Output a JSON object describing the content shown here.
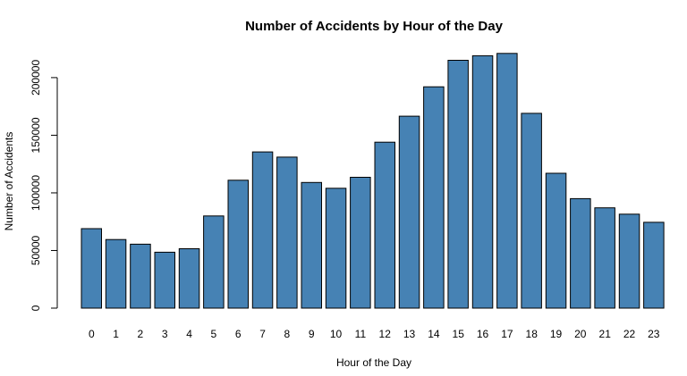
{
  "chart_data": {
    "type": "bar",
    "title": "Number of Accidents by Hour of the Day",
    "xlabel": "Hour of the Day",
    "ylabel": "Number of Accidents",
    "categories": [
      "0",
      "1",
      "2",
      "3",
      "4",
      "5",
      "6",
      "7",
      "8",
      "9",
      "10",
      "11",
      "12",
      "13",
      "14",
      "15",
      "16",
      "17",
      "18",
      "19",
      "20",
      "21",
      "22",
      "23"
    ],
    "values": [
      69000,
      59500,
      55500,
      48500,
      51500,
      80000,
      111000,
      135500,
      131000,
      109000,
      104000,
      113500,
      144000,
      166500,
      192000,
      215000,
      219000,
      221000,
      169000,
      117000,
      95000,
      87000,
      81500,
      74500
    ],
    "yticks": [
      0,
      50000,
      100000,
      150000,
      200000
    ],
    "ytick_labels": [
      "0",
      "50000",
      "100000",
      "150000",
      "200000"
    ],
    "ylim": [
      0,
      224000
    ],
    "bar_color": "#4682B4",
    "grid": false,
    "legend": "none"
  }
}
